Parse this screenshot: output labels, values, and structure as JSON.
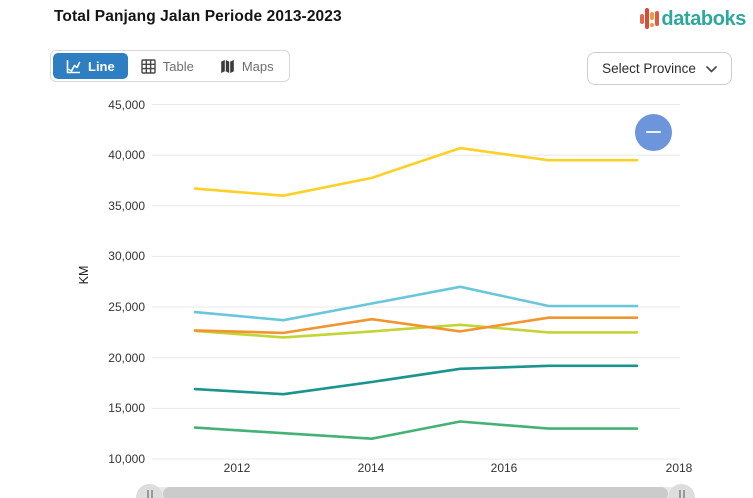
{
  "header": {
    "title": "Total Panjang Jalan Periode 2013-2023",
    "brand": "databoks"
  },
  "toolbar": {
    "line_label": "Line",
    "table_label": "Table",
    "maps_label": "Maps",
    "province_select": "Select Province"
  },
  "colors": {
    "active_button": "#2e7ec2",
    "brand_text": "#2ea89d",
    "zoom_button": "#6d95dc"
  },
  "chart_data": {
    "type": "line",
    "title": "Total Panjang Jalan Periode 2013-2023",
    "ylabel": "KM",
    "ylim": [
      10000,
      45000
    ],
    "grid": true,
    "legend": "none",
    "y_ticks": [
      "45,000",
      "40,000",
      "35,000",
      "30,000",
      "25,000",
      "20,000",
      "15,000",
      "10,000"
    ],
    "x_ticks": [
      "2012",
      "2014",
      "2016",
      "2018"
    ],
    "series": [
      {
        "name": "yellow-line",
        "color": "#fbd128",
        "values": [
          36700,
          36000,
          37750,
          40700,
          39500,
          39500
        ]
      },
      {
        "name": "cyan-line",
        "color": "#6ac7da",
        "values": [
          24500,
          23700,
          25350,
          27000,
          25100,
          25100
        ]
      },
      {
        "name": "lime-line",
        "color": "#c3d435",
        "values": [
          22650,
          22000,
          22600,
          23250,
          22500,
          22500
        ]
      },
      {
        "name": "orange-line",
        "color": "#f0952f",
        "values": [
          22700,
          22450,
          23800,
          22600,
          23950,
          23950
        ]
      },
      {
        "name": "teal-line",
        "color": "#1a948e",
        "values": [
          16900,
          16400,
          17600,
          18900,
          19200,
          19200
        ]
      },
      {
        "name": "green-line",
        "color": "#44b175",
        "values": [
          13100,
          12550,
          12000,
          13700,
          13000,
          13000
        ]
      }
    ]
  }
}
